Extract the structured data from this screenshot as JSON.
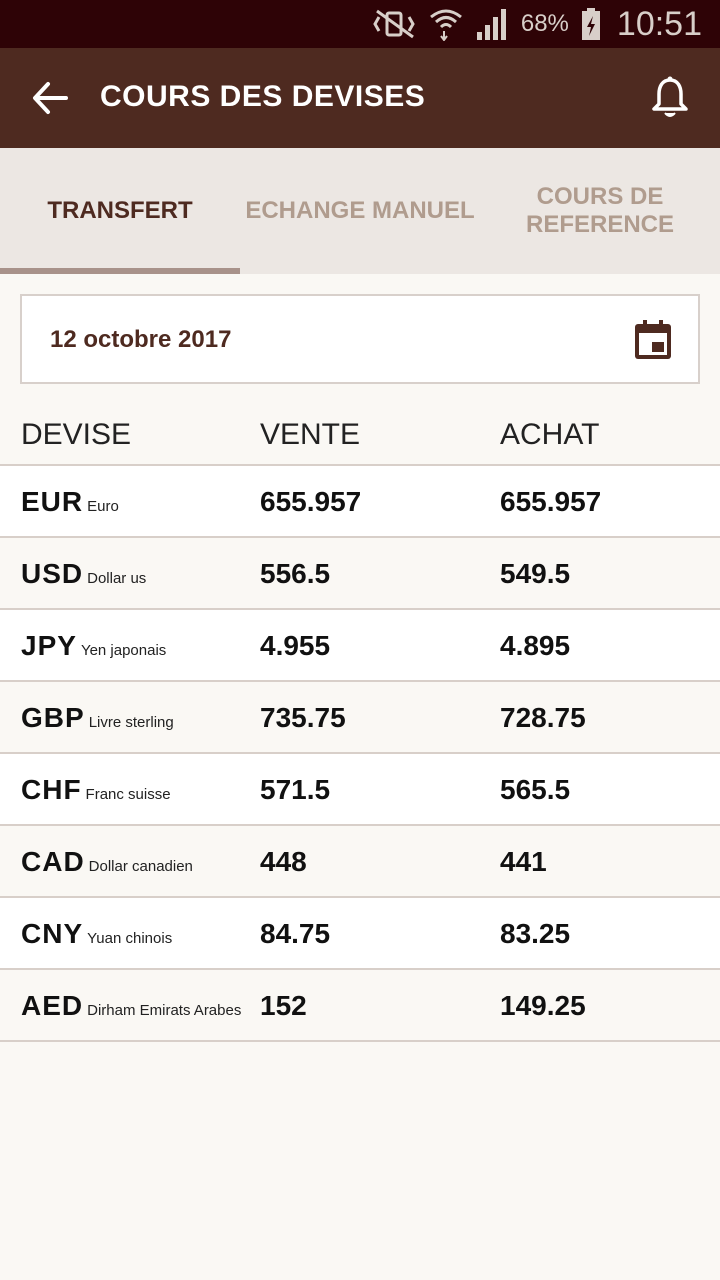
{
  "status": {
    "battery": "68%",
    "time": "10:51"
  },
  "appbar": {
    "title": "COURS DES DEVISES"
  },
  "tabs": [
    {
      "label": "TRANSFERT",
      "active": true
    },
    {
      "label": "ECHANGE MANUEL",
      "active": false
    },
    {
      "label": "COURS DE REFERENCE",
      "active": false
    }
  ],
  "date": {
    "value": "12 octobre 2017"
  },
  "table": {
    "headers": {
      "devise": "DEVISE",
      "vente": "VENTE",
      "achat": "ACHAT"
    },
    "rows": [
      {
        "code": "EUR",
        "name": "Euro",
        "vente": "655.957",
        "achat": "655.957"
      },
      {
        "code": "USD",
        "name": "Dollar us",
        "vente": "556.5",
        "achat": "549.5"
      },
      {
        "code": "JPY",
        "name": "Yen japonais",
        "vente": "4.955",
        "achat": "4.895"
      },
      {
        "code": "GBP",
        "name": "Livre sterling",
        "vente": "735.75",
        "achat": "728.75"
      },
      {
        "code": "CHF",
        "name": "Franc suisse",
        "vente": "571.5",
        "achat": "565.5"
      },
      {
        "code": "CAD",
        "name": "Dollar canadien",
        "vente": "448",
        "achat": "441"
      },
      {
        "code": "CNY",
        "name": "Yuan chinois",
        "vente": "84.75",
        "achat": "83.25"
      },
      {
        "code": "AED",
        "name": "Dirham Emirats Arabes",
        "vente": "152",
        "achat": "149.25"
      }
    ]
  },
  "colors": {
    "appbar": "#4e2a20",
    "statusbar": "#2e0306",
    "tab_active": "#4e2a20",
    "tab_inactive": "#b09c8e"
  }
}
